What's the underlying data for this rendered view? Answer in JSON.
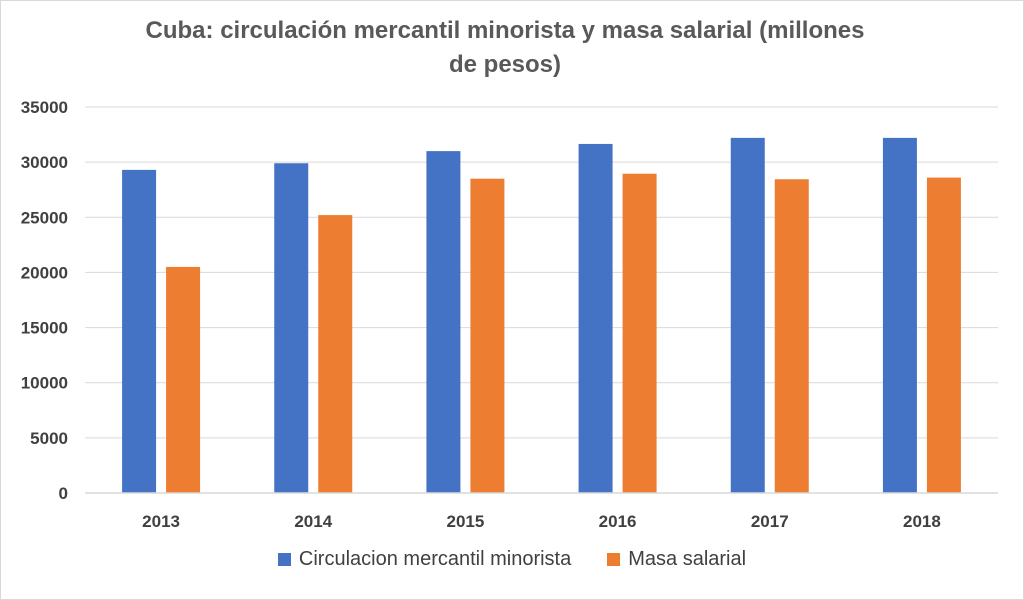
{
  "chart_data": {
    "type": "bar",
    "title": "Cuba: circulación mercantil minorista y masa salarial (millones de pesos)",
    "categories": [
      "2013",
      "2014",
      "2015",
      "2016",
      "2017",
      "2018"
    ],
    "series": [
      {
        "name": "Circulacion mercantil minorista",
        "color": "#4472c4",
        "values": [
          29300,
          29900,
          31000,
          31650,
          32200,
          32200
        ]
      },
      {
        "name": "Masa salarial",
        "color": "#ed7d31",
        "values": [
          20500,
          25200,
          28500,
          28950,
          28450,
          28600
        ]
      }
    ],
    "ylim": [
      0,
      35000
    ],
    "yticks": [
      0,
      5000,
      10000,
      15000,
      20000,
      25000,
      30000,
      35000
    ],
    "grid": true,
    "legend": "bottom"
  }
}
